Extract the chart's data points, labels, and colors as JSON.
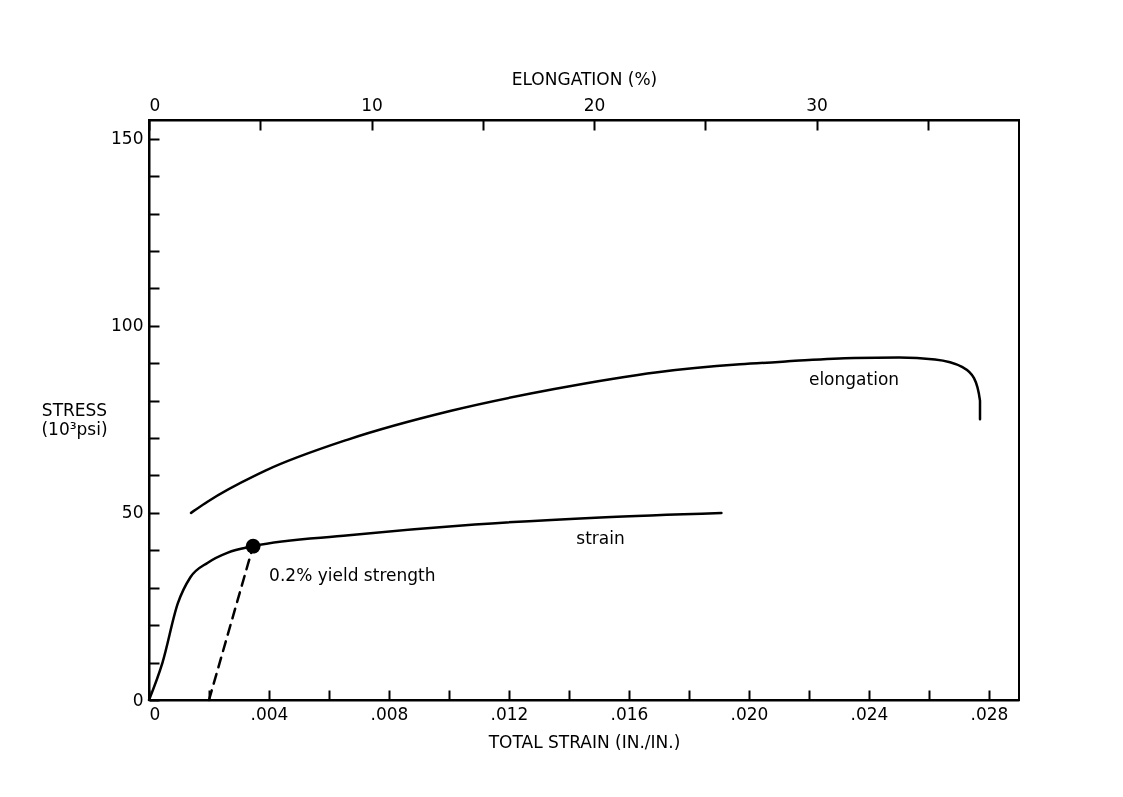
{
  "chart_data": {
    "type": "line",
    "xlabel": "TOTAL STRAIN (IN./IN.)",
    "ylabel": "STRESS (10³psi)",
    "x2label": "ELONGATION (%)",
    "xlim": [
      0,
      0.029
    ],
    "ylim": [
      0,
      155
    ],
    "x2lim": [
      0,
      39.1
    ],
    "xticks": [
      {
        "value": 0,
        "label": "0"
      },
      {
        "value": 0.002,
        "label": null
      },
      {
        "value": 0.004,
        "label": ".004"
      },
      {
        "value": 0.006,
        "label": null
      },
      {
        "value": 0.008,
        "label": ".008"
      },
      {
        "value": 0.01,
        "label": null
      },
      {
        "value": 0.012,
        "label": ".012"
      },
      {
        "value": 0.014,
        "label": null
      },
      {
        "value": 0.016,
        "label": ".016"
      },
      {
        "value": 0.018,
        "label": null
      },
      {
        "value": 0.02,
        "label": ".020"
      },
      {
        "value": 0.022,
        "label": null
      },
      {
        "value": 0.024,
        "label": ".024"
      },
      {
        "value": 0.026,
        "label": null
      },
      {
        "value": 0.028,
        "label": ".028"
      }
    ],
    "x2ticks": [
      0,
      {
        "value": 5,
        "label": null
      },
      10,
      {
        "value": 15,
        "label": null
      },
      20,
      {
        "value": 25,
        "label": null
      },
      30,
      {
        "value": 35,
        "label": null
      }
    ],
    "yticks": [
      0,
      {
        "value": 10,
        "label": null
      },
      {
        "value": 20,
        "label": null
      },
      {
        "value": 30,
        "label": null
      },
      {
        "value": 40,
        "label": null
      },
      50,
      {
        "value": 60,
        "label": null
      },
      {
        "value": 70,
        "label": null
      },
      {
        "value": 80,
        "label": null
      },
      {
        "value": 90,
        "label": null
      },
      100,
      {
        "value": 110,
        "label": null
      },
      {
        "value": 120,
        "label": null
      },
      {
        "value": 130,
        "label": null
      },
      {
        "value": 140,
        "label": null
      },
      150
    ],
    "grid": false,
    "series": [
      {
        "name": "elongation",
        "color": "#000000",
        "x": [
          0.0014,
          0.00195,
          0.00388,
          0.00663,
          0.01007,
          0.01351,
          0.01695,
          0.0197,
          0.0213,
          0.0235,
          0.025,
          0.0262,
          0.0271,
          0.0275,
          0.0277,
          0.0277
        ],
        "values": [
          50,
          53,
          61.3,
          69.6,
          77.3,
          83.1,
          87.6,
          89.7,
          90.5,
          91.4,
          91.5,
          91,
          89,
          86,
          80,
          75
        ]
      },
      {
        "name": "strain",
        "color": "#000000",
        "x": [
          0,
          0.00045,
          0.00096,
          0.00138,
          0.00196,
          0.00263,
          0.00347,
          0.00666,
          0.01086,
          0.01505,
          0.01908
        ],
        "values": [
          0,
          10,
          25.8,
          32.8,
          36.7,
          39.4,
          41.1,
          44,
          46.9,
          48.8,
          50
        ]
      },
      {
        "type": "line",
        "line_style": "dashed",
        "color": "#000000",
        "x": [
          0.002,
          0.00347
        ],
        "values": [
          0,
          41.1
        ]
      },
      {
        "type": "scatter",
        "marker": "circle",
        "color": "#000000",
        "x": [
          0.00347
        ],
        "values": [
          41.1
        ]
      }
    ],
    "annotations": [
      {
        "text": "0.2% yield strength",
        "x": 0.00347,
        "y": 41.1
      }
    ]
  }
}
